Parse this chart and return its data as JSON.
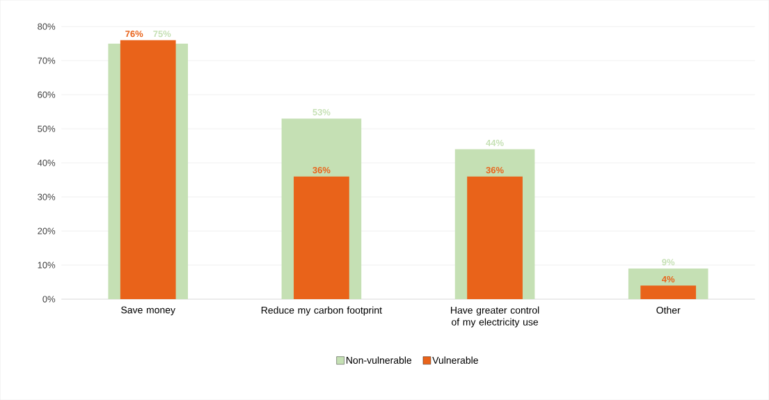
{
  "chart_data": {
    "type": "bar",
    "categories": [
      "Save money",
      "Reduce my carbon footprint",
      "Have greater control of my electricity use",
      "Other"
    ],
    "series": [
      {
        "name": "Non-vulnerable",
        "color": "#c5e0b4",
        "values": [
          75,
          53,
          44,
          9
        ],
        "value_labels": [
          "75%",
          "53%",
          "44%",
          "9%"
        ]
      },
      {
        "name": "Vulnerable",
        "color": "#e9631a",
        "values": [
          76,
          36,
          36,
          4
        ],
        "value_labels": [
          "76%",
          "36%",
          "36%",
          "4%"
        ]
      }
    ],
    "ylim": [
      0,
      80
    ],
    "yticks": [
      {
        "value": 0,
        "label": "0%"
      },
      {
        "value": 10,
        "label": "10%"
      },
      {
        "value": 20,
        "label": "20%"
      },
      {
        "value": 30,
        "label": "30%"
      },
      {
        "value": 40,
        "label": "40%"
      },
      {
        "value": 50,
        "label": "50%"
      },
      {
        "value": 60,
        "label": "60%"
      },
      {
        "value": 70,
        "label": "70%"
      },
      {
        "value": 80,
        "label": "80%"
      }
    ],
    "grid": "y",
    "legend": "bottom"
  }
}
